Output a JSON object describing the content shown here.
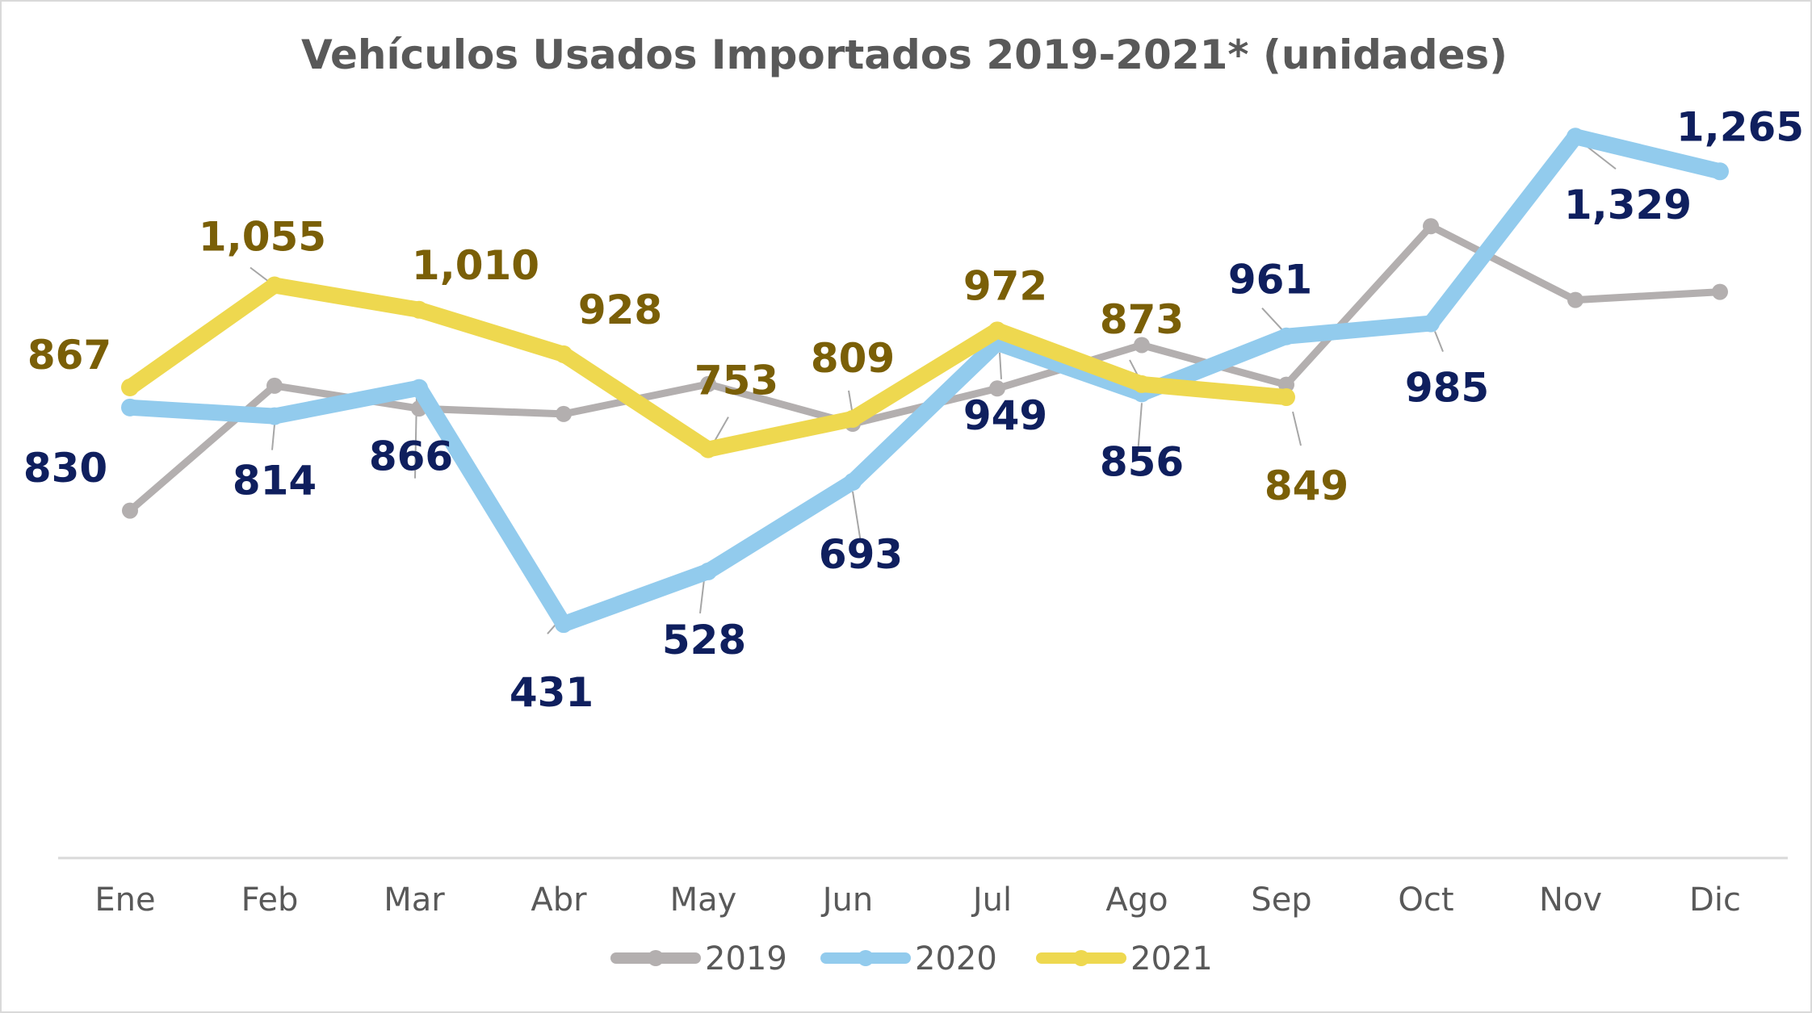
{
  "chart_data": {
    "type": "line",
    "title": "Vehículos Usados Importados 2019-2021* (unidades)",
    "xlabel": "",
    "ylabel": "",
    "ylim": [
      0,
      1400
    ],
    "grid": false,
    "legend_position": "bottom",
    "categories": [
      "Ene",
      "Feb",
      "Mar",
      "Abr",
      "May",
      "Jun",
      "Jul",
      "Ago",
      "Sep",
      "Oct",
      "Nov",
      "Dic"
    ],
    "series": [
      {
        "name": "2019",
        "color": "#b3afaf",
        "values": [
          640,
          870,
          828,
          818,
          873,
          800,
          865,
          945,
          872,
          1164,
          1028,
          1043
        ],
        "labels": [
          null,
          null,
          null,
          null,
          null,
          null,
          null,
          null,
          null,
          null,
          null,
          null
        ]
      },
      {
        "name": "2020",
        "color": "#92cbed",
        "label_color": "#0f1f5e",
        "values": [
          830,
          814,
          866,
          431,
          528,
          693,
          949,
          856,
          961,
          985,
          1329,
          1265
        ],
        "labels": [
          "830",
          "814",
          "866",
          "431",
          "528",
          "693",
          "949",
          "856",
          "961",
          "985",
          "1,329",
          "1,265"
        ]
      },
      {
        "name": "2021",
        "color": "#eed84f",
        "label_color": "#7a5f07",
        "values": [
          867,
          1055,
          1010,
          928,
          753,
          809,
          972,
          873,
          849,
          null,
          null,
          null
        ],
        "labels": [
          "867",
          "1,055",
          "1,010",
          "928",
          "753",
          "809",
          "972",
          "873",
          "849",
          null,
          null,
          null
        ]
      }
    ]
  }
}
